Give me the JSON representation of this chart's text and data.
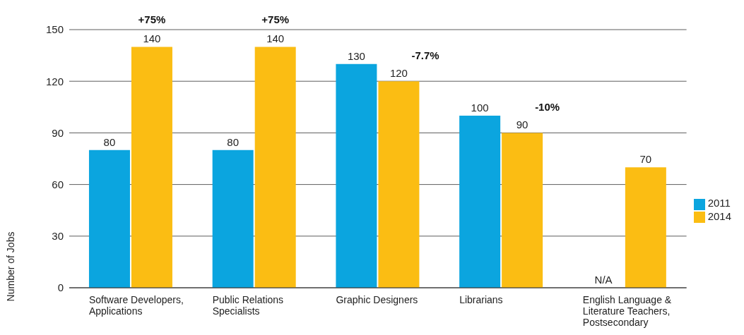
{
  "chart_data": {
    "type": "bar",
    "ylabel": "Number of Jobs",
    "categories": [
      "Software Developers, Applications",
      "Public Relations Specialists",
      "Graphic Designers",
      "Librarians",
      "English Language & Literature Teachers, Postsecondary"
    ],
    "series": [
      {
        "name": "2011",
        "color": "#0ba5df",
        "values": [
          80,
          80,
          130,
          100,
          null
        ],
        "value_labels": [
          "80",
          "80",
          "130",
          "100",
          "N/A"
        ]
      },
      {
        "name": "2014",
        "color": "#fbbd13",
        "values": [
          140,
          140,
          120,
          90,
          70
        ],
        "value_labels": [
          "140",
          "140",
          "120",
          "90",
          "70"
        ]
      }
    ],
    "annotations": [
      "+75%",
      "+75%",
      "-7.7%",
      "-10%"
    ],
    "ylim": [
      0,
      150
    ],
    "yticks": [
      0,
      30,
      60,
      90,
      120,
      150
    ],
    "grid": "y",
    "legend": "right"
  }
}
